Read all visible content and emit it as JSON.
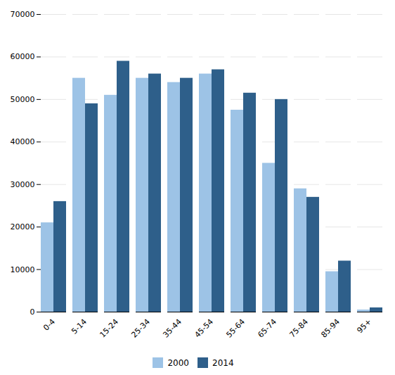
{
  "chart_data": {
    "type": "bar",
    "categories": [
      "0-4",
      "5-14",
      "15-24",
      "25-34",
      "35-44",
      "45-54",
      "55-64",
      "65-74",
      "75-84",
      "85-94",
      "95+"
    ],
    "series": [
      {
        "name": "2000",
        "color": "#9DC3E6",
        "values": [
          21000,
          55000,
          51000,
          55000,
          54000,
          56000,
          47500,
          35000,
          29000,
          9500,
          500
        ]
      },
      {
        "name": "2014",
        "color": "#2E5F8A",
        "values": [
          26000,
          49000,
          59000,
          56000,
          55000,
          57000,
          51500,
          50000,
          27000,
          12000,
          1000
        ]
      }
    ],
    "ylim": [
      0,
      70000
    ],
    "yticks": [
      0,
      10000,
      20000,
      30000,
      40000,
      50000,
      60000,
      70000
    ],
    "grid": true,
    "legend": "bottom"
  }
}
